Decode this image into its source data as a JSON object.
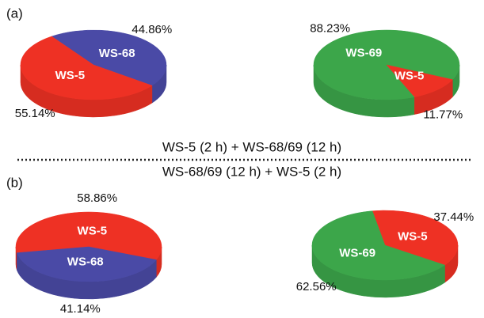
{
  "panel_labels": [
    "(a)",
    "(b)"
  ],
  "captions": [
    "WS-5 (2 h) + WS-68/69 (12 h)",
    "WS-68/69 (12 h) + WS-5 (2 h)"
  ],
  "chart_data": [
    {
      "type": "pie",
      "categories": [
        "WS-68",
        "WS-5"
      ],
      "values": [
        44.86,
        55.14
      ],
      "value_labels": [
        "44.86%",
        "55.14%"
      ],
      "colors": [
        "#4a4aa6",
        "#ee3124"
      ]
    },
    {
      "type": "pie",
      "categories": [
        "WS-69",
        "WS-5"
      ],
      "values": [
        88.23,
        11.77
      ],
      "value_labels": [
        "88.23%",
        "11.77%"
      ],
      "colors": [
        "#3ca64a",
        "#ee3124"
      ]
    },
    {
      "type": "pie",
      "categories": [
        "WS-5",
        "WS-68"
      ],
      "values": [
        58.86,
        41.14
      ],
      "value_labels": [
        "58.86%",
        "41.14%"
      ],
      "colors": [
        "#ee3124",
        "#4a4aa6"
      ]
    },
    {
      "type": "pie",
      "categories": [
        "WS-5",
        "WS-69"
      ],
      "values": [
        37.44,
        62.56
      ],
      "value_labels": [
        "37.44%",
        "62.56%"
      ],
      "colors": [
        "#ee3124",
        "#3ca64a"
      ]
    }
  ]
}
